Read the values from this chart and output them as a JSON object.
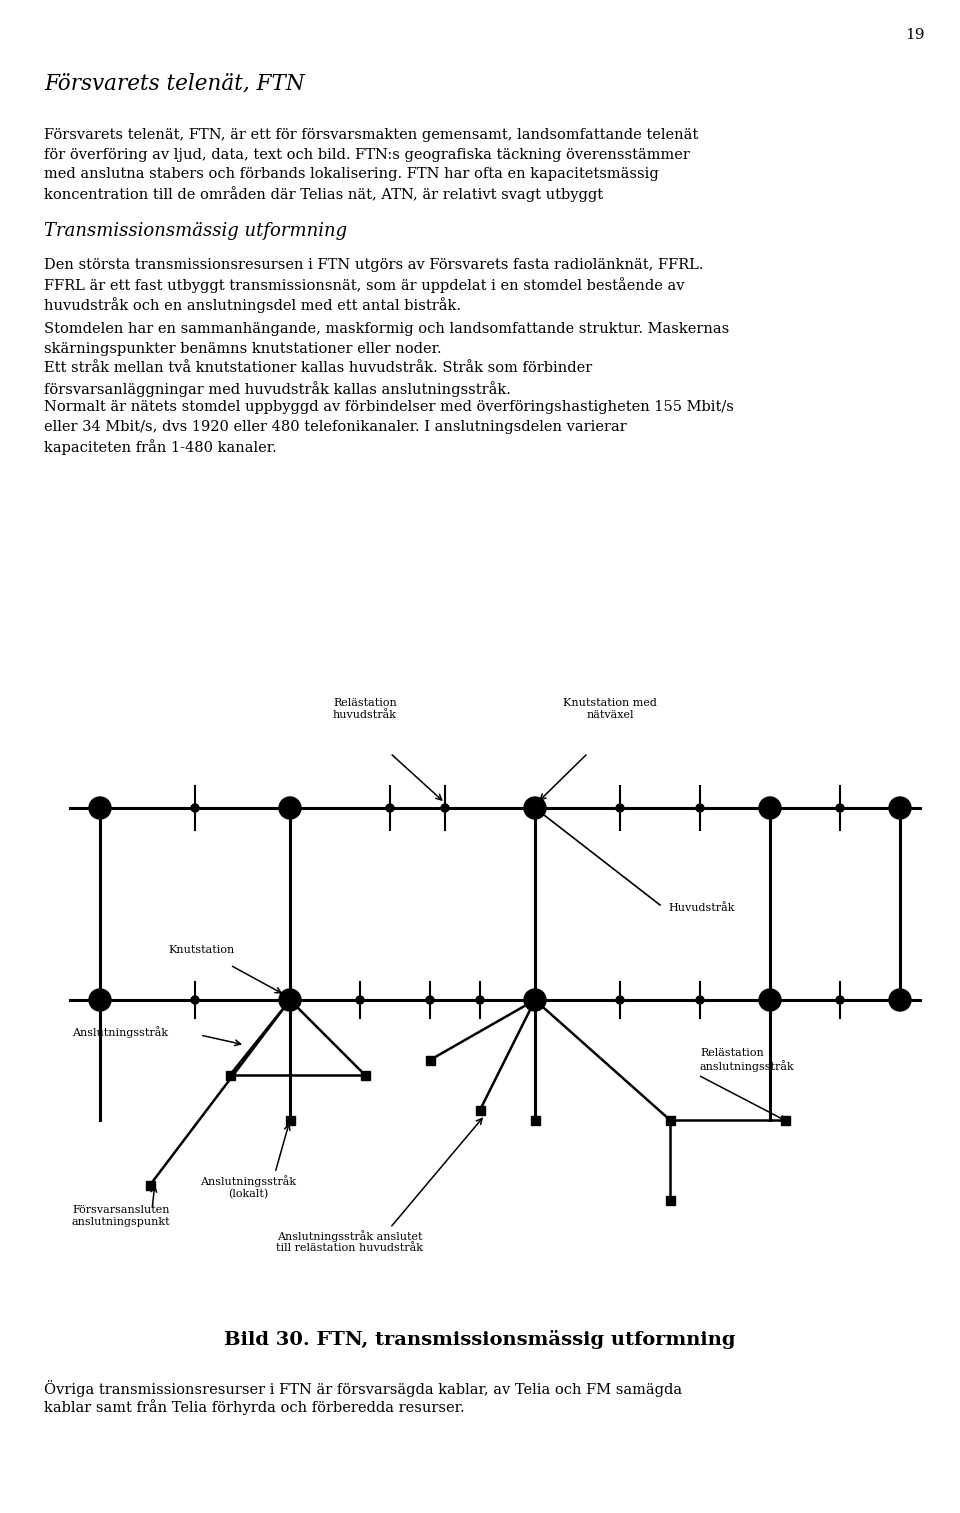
{
  "page_number": "19",
  "title": "Försvarets telenät, FTN",
  "paragraph1": "Försvarets telenät, FTN, är ett för försvarsmakten gemensamt, landsomfattande telenät för överföring av ljud, data, text och bild. FTN:s geografiska täckning överensstämmer med anslutna stabers och förbands lokalisering. FTN har ofta en kapacitetsmässig koncentration till de områden där Telias nät, ATN, är relativt svagt utbyggt",
  "subtitle": "Transmissionsmässig utformning",
  "paragraph2": "Den största transmissionsresursen i FTN utgörs av Försvarets fasta radiolänknät, FFRL. FFRL är ett fast utbyggt transmissionsnät, som är uppdelat i en stomdel bestående av huvudstråk och en anslutningsdel med ett antal bistråk.",
  "paragraph3": "Stomdelen har en sammanhängande, maskformig och landsomfattande struktur. Maskernas skärningspunkter benämns knutstationer eller noder.",
  "paragraph4": "Ett stråk mellan två knutstationer kallas huvudstråk. Stråk som förbinder försvarsanläggningar med huvudstråk kallas anslutningsstråk.",
  "paragraph5": "Normalt är nätets stomdel uppbyggd av förbindelser med överföringshastigheten 155 Mbit/s eller 34 Mbit/s, dvs 1920 eller 480 telefonikanaler. I anslutningsdelen varierar kapaciteten från 1-480 kanaler.",
  "caption": "Bild 30. FTN, transmissionsmässig utformning",
  "paragraph6": "Övriga transmissionsresurser i FTN är försvarsägda kablar, av Telia och FM samägda kablar samt från Telia förhyrda och förberedda resurser.",
  "bg_color": "#ffffff",
  "text_color": "#000000"
}
